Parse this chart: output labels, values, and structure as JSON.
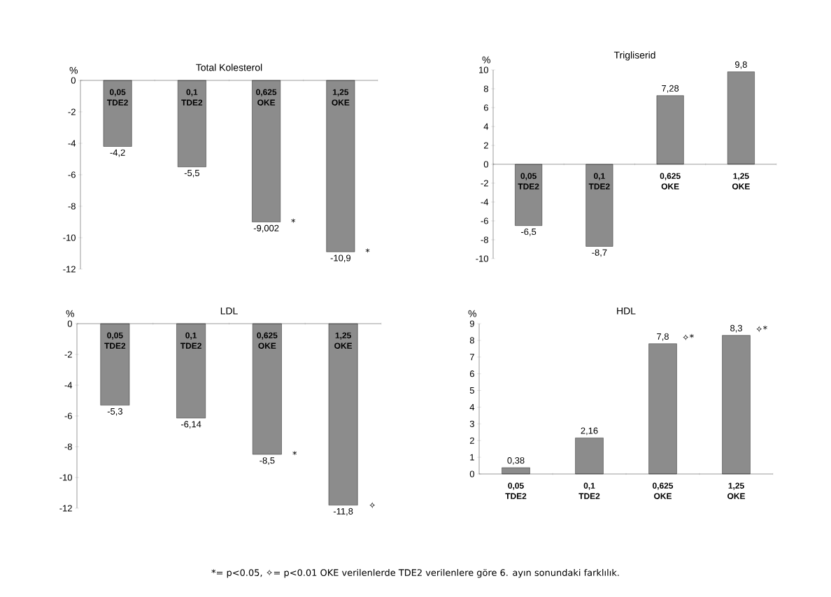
{
  "chart_data": [
    {
      "type": "bar",
      "title": "Total Kolesterol",
      "ylabel": "%",
      "categories": [
        "0,05 TDE2",
        "0,1 TDE2",
        "0,625 OKE",
        "1,25 OKE"
      ],
      "values": [
        -4.2,
        -5.5,
        -9.002,
        -10.9
      ],
      "value_labels": [
        "-4,2",
        "-5,5",
        "-9,002",
        "-10,9"
      ],
      "color": "#8c8c8c",
      "ylim": [
        -12,
        0
      ],
      "yticks": [
        0,
        -2,
        -4,
        -6,
        -8,
        -10,
        -12
      ],
      "annotations": [
        {
          "text": "*",
          "x": "0,625 OKE",
          "y": -9.002
        },
        {
          "text": "*",
          "x": "1,25 OKE",
          "y": -10.9
        }
      ]
    },
    {
      "type": "bar",
      "title": "Trigliserid",
      "ylabel": "%",
      "categories": [
        "0,05 TDE2",
        "0,1 TDE2",
        "0,625 OKE",
        "1,25 OKE"
      ],
      "values": [
        -6.5,
        -8.7,
        7.28,
        9.8
      ],
      "value_labels": [
        "-6,5",
        "-8,7",
        "7,28",
        "9,8"
      ],
      "color": "#8c8c8c",
      "ylim": [
        -10,
        10
      ],
      "yticks": [
        10,
        8,
        6,
        4,
        2,
        0,
        -2,
        -4,
        -6,
        -8,
        -10
      ]
    },
    {
      "type": "bar",
      "title": "LDL",
      "ylabel": "%",
      "categories": [
        "0,05 TDE2",
        "0,1 TDE2",
        "0,625 OKE",
        "1,25 OKE"
      ],
      "values": [
        -5.3,
        -6.14,
        -8.5,
        -11.8
      ],
      "value_labels": [
        "-5,3",
        "-6,14",
        "-8,5",
        "-11,8"
      ],
      "color": "#8c8c8c",
      "ylim": [
        -12,
        0
      ],
      "yticks": [
        0,
        -2,
        -4,
        -6,
        -8,
        -10,
        -12
      ],
      "annotations": [
        {
          "text": "*",
          "x": "0,625 OKE",
          "y": -8.5
        },
        {
          "text": "✧",
          "x": "1,25 OKE",
          "y": -11.8
        }
      ]
    },
    {
      "type": "bar",
      "title": "HDL",
      "ylabel": "%",
      "categories": [
        "0,05 TDE2",
        "0,1 TDE2",
        "0,625 OKE",
        "1,25 OKE"
      ],
      "values": [
        0.38,
        2.16,
        7.8,
        8.3
      ],
      "value_labels": [
        "0,38",
        "2,16",
        "7,8",
        "8,3"
      ],
      "color": "#8c8c8c",
      "ylim": [
        0,
        9
      ],
      "yticks": [
        0,
        1,
        2,
        3,
        4,
        5,
        6,
        7,
        8,
        9
      ],
      "annotations": [
        {
          "text": "✧*",
          "x": "0,625 OKE",
          "y": 7.8
        },
        {
          "text": "✧*",
          "x": "1,25 OKE",
          "y": 8.3
        },
        "*= p<0.05, ✧= p<0.01 OKE verilenlerde TDE2 verilenlere göre 6. ayın sonundaki farklılık."
      ]
    }
  ]
}
